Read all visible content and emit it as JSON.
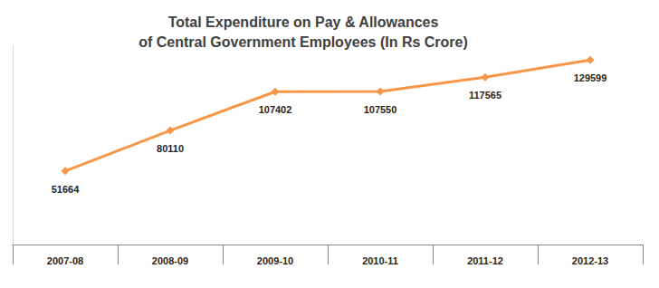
{
  "chart_data": {
    "type": "line",
    "title": "Total Expenditure on Pay & Allowances\nof Central Government Employees (In Rs Crore)",
    "categories": [
      "2007-08",
      "2008-09",
      "2009-10",
      "2010-11",
      "2011-12",
      "2012-13"
    ],
    "values": [
      51664,
      80110,
      107402,
      107550,
      117565,
      129599
    ],
    "color": "#f79646",
    "marker": "diamond",
    "ylim": [
      0,
      140000
    ],
    "grid": false,
    "data_labels": true,
    "tick_labels": "x"
  }
}
